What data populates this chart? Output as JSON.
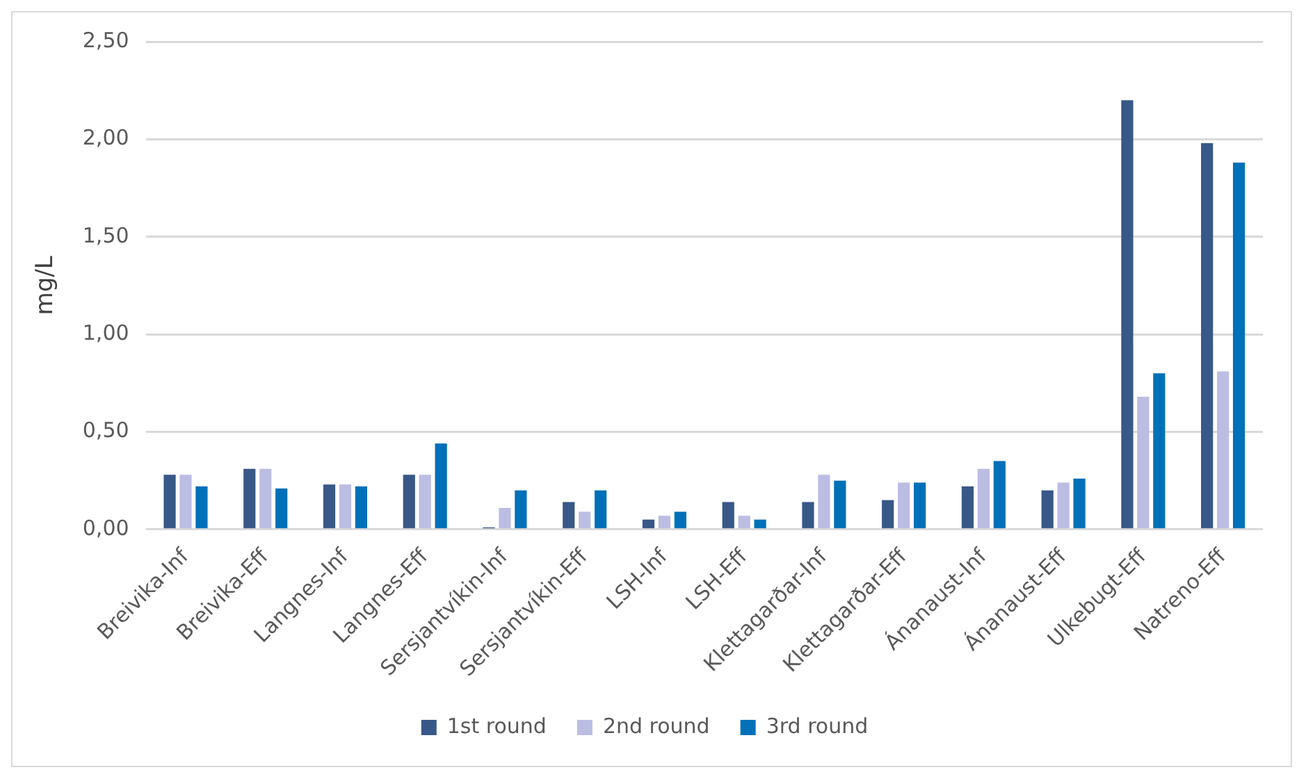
{
  "chart_data": {
    "type": "bar",
    "ylabel": "mg/L",
    "categories": [
      "Breivika-Inf",
      "Breivika-Eff",
      "Langnes-Inf",
      "Langnes-Eff",
      "Sersjantvíkin-Inf",
      "Sersjantvíkin-Eff",
      "LSH-Inf",
      "LSH-Eff",
      "Klettagarðar-Inf",
      "Klettagarðar-Eff",
      "Ánanaust-Inf",
      "Ánanaust-Eff",
      "Ulkebugt-Eff",
      "Natreno-Eff"
    ],
    "series": [
      {
        "name": "1st round",
        "color": "#385888",
        "values": [
          0.28,
          0.31,
          0.23,
          0.28,
          0.01,
          0.14,
          0.05,
          0.14,
          0.14,
          0.15,
          0.22,
          0.2,
          2.2,
          1.98
        ]
      },
      {
        "name": "2nd round",
        "color": "#bcbde3",
        "values": [
          0.28,
          0.31,
          0.23,
          0.28,
          0.11,
          0.09,
          0.07,
          0.07,
          0.28,
          0.24,
          0.31,
          0.24,
          0.68,
          0.81
        ]
      },
      {
        "name": "3rd round",
        "color": "#0070b8",
        "values": [
          0.22,
          0.21,
          0.22,
          0.44,
          0.2,
          0.2,
          0.09,
          0.05,
          0.25,
          0.24,
          0.35,
          0.26,
          0.8,
          1.88
        ]
      }
    ],
    "ylim": [
      0,
      2.5
    ],
    "yticks": [
      {
        "value": 0,
        "label": "0,00"
      },
      {
        "value": 0.5,
        "label": "0,50"
      },
      {
        "value": 1,
        "label": "1,00"
      },
      {
        "value": 1.5,
        "label": "1,50"
      },
      {
        "value": 2,
        "label": "2,00"
      },
      {
        "value": 2.5,
        "label": "2,50"
      }
    ],
    "grid": "y",
    "legend": "bottom"
  }
}
